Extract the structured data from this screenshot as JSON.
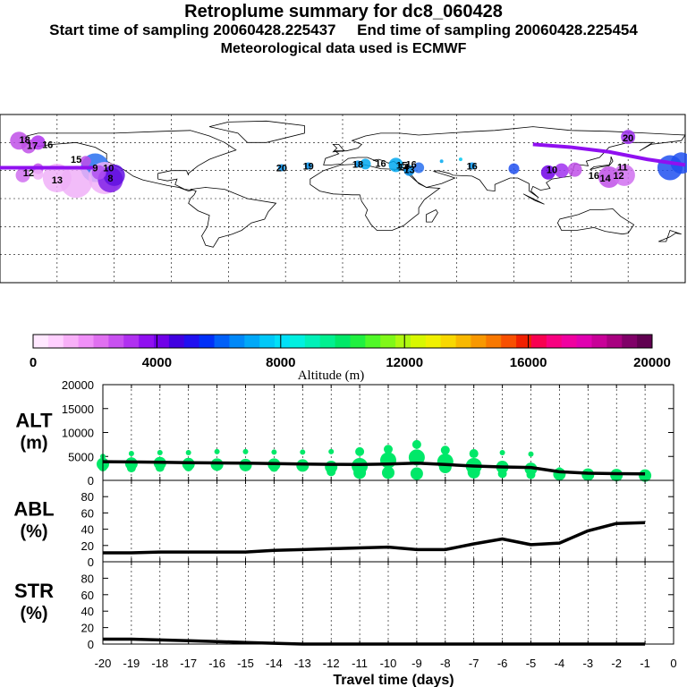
{
  "header": {
    "title": "Retroplume summary for dc8_060428",
    "start_label": "Start time of sampling 20060428.225437",
    "end_label": "End time of sampling 20060428.225454",
    "met_label": "Meteorological data used is ECMWF"
  },
  "colors": {
    "alt_line": "#000000",
    "particle": "#00e868",
    "scale": [
      "#ffe8ff",
      "#ffd0ff",
      "#f8b0f8",
      "#f090f8",
      "#e070f0",
      "#c850f0",
      "#b030f0",
      "#9010f0",
      "#7000e8",
      "#4000e0",
      "#2010f0",
      "#0030f8",
      "#0060f8",
      "#0088f8",
      "#00a8f8",
      "#00c8f8",
      "#00e0f8",
      "#00f0e0",
      "#00f0b8",
      "#00f090",
      "#00e868",
      "#20f040",
      "#50f828",
      "#80f818",
      "#b0f810",
      "#d8f800",
      "#f0f000",
      "#f8d800",
      "#f8b800",
      "#f89800",
      "#f87800",
      "#f85000",
      "#f02000",
      "#f80050",
      "#f80080",
      "#f000a0",
      "#e000b0",
      "#c80098",
      "#a80080",
      "#800068",
      "#600050"
    ]
  },
  "map": {
    "labels": [
      {
        "text": "9",
        "lon": -130,
        "lat": 33,
        "color": "#2870f0"
      },
      {
        "text": "8",
        "lon": -122,
        "lat": 22,
        "color": "#8020e8"
      },
      {
        "text": "10",
        "lon": -123,
        "lat": 33,
        "color": "#b050f0"
      },
      {
        "text": "13",
        "lon": -150,
        "lat": 20,
        "color": "#f0b0f8"
      },
      {
        "text": "12",
        "lon": -165,
        "lat": 28,
        "color": "#d070f0"
      },
      {
        "text": "17",
        "lon": -163,
        "lat": 57,
        "color": "#c050e8"
      },
      {
        "text": "16",
        "lon": -155,
        "lat": 58,
        "color": "#c050e8"
      },
      {
        "text": "18",
        "lon": -167,
        "lat": 63,
        "color": "#c050e8"
      },
      {
        "text": "15",
        "lon": -140,
        "lat": 42,
        "color": "#d070f0"
      },
      {
        "text": "20",
        "lon": -32,
        "lat": 33,
        "color": "#0090f0"
      },
      {
        "text": "19",
        "lon": -18,
        "lat": 35,
        "color": "#0090f0"
      },
      {
        "text": "18",
        "lon": 8,
        "lat": 37,
        "color": "#0090f0"
      },
      {
        "text": "16",
        "lon": 20,
        "lat": 38,
        "color": "#0090f0"
      },
      {
        "text": "15",
        "lon": 31,
        "lat": 36,
        "color": "#0090f0"
      },
      {
        "text": "14",
        "lon": 32,
        "lat": 34,
        "color": "#0090f0"
      },
      {
        "text": "13",
        "lon": 35,
        "lat": 31,
        "color": "#0090f0"
      },
      {
        "text": "16",
        "lon": 36,
        "lat": 37,
        "color": "#0090f0"
      },
      {
        "text": "16",
        "lon": 68,
        "lat": 35,
        "color": "#0090f0"
      },
      {
        "text": "11",
        "lon": 147,
        "lat": 34,
        "color": "#2050f0"
      },
      {
        "text": "16",
        "lon": 132,
        "lat": 25,
        "color": "#a030f0"
      },
      {
        "text": "14",
        "lon": 138,
        "lat": 22,
        "color": "#a030f0"
      },
      {
        "text": "12",
        "lon": 145,
        "lat": 25,
        "color": "#a030f0"
      },
      {
        "text": "20",
        "lon": 150,
        "lat": 65,
        "color": "#a030f0"
      },
      {
        "text": "10",
        "lon": 110,
        "lat": 31,
        "color": "#8020e8"
      }
    ]
  },
  "colorbar": {
    "label": "Altitude (m)",
    "ticks": [
      "0",
      "4000",
      "8000",
      "12000",
      "16000",
      "20000"
    ]
  },
  "chart_data": [
    {
      "type": "line",
      "panel": "ALT",
      "ylabel": "ALT\n(m)",
      "ylabel_line1": "ALT",
      "ylabel_line2": "(m)",
      "ylim": [
        0,
        20000
      ],
      "yticks": [
        "0",
        "5000",
        "10000",
        "15000",
        "20000"
      ],
      "x": [
        -20,
        -19,
        -18,
        -17,
        -16,
        -15,
        -14,
        -13,
        -12,
        -11,
        -10,
        -9,
        -8,
        -7,
        -6,
        -5,
        -4,
        -3,
        -2,
        -1
      ],
      "values": [
        3900,
        3850,
        3800,
        3700,
        3650,
        3600,
        3500,
        3400,
        3350,
        3300,
        3400,
        3600,
        3300,
        3000,
        2800,
        2700,
        1800,
        1500,
        1400,
        1350
      ],
      "particles": [
        {
          "x": -20,
          "alt": [
            5000,
            3400,
            2800
          ]
        },
        {
          "x": -19,
          "alt": [
            5600,
            3500,
            2600
          ]
        },
        {
          "x": -18,
          "alt": [
            5800,
            3600,
            2700
          ]
        },
        {
          "x": -17,
          "alt": [
            5800,
            3400,
            2800
          ]
        },
        {
          "x": -16,
          "alt": [
            6000,
            3300,
            2900
          ]
        },
        {
          "x": -15,
          "alt": [
            6000,
            3200,
            2900
          ]
        },
        {
          "x": -14,
          "alt": [
            5900,
            3300,
            2700
          ]
        },
        {
          "x": -13,
          "alt": [
            5900,
            3100,
            2800
          ]
        },
        {
          "x": -12,
          "alt": [
            6000,
            2800,
            1800
          ]
        },
        {
          "x": -11,
          "alt": [
            6000,
            3000,
            1600
          ]
        },
        {
          "x": -10,
          "alt": [
            6500,
            4200,
            1600
          ]
        },
        {
          "x": -9,
          "alt": [
            7500,
            4800,
            1400
          ]
        },
        {
          "x": -8,
          "alt": [
            6300,
            3900,
            2800
          ]
        },
        {
          "x": -7,
          "alt": [
            5600,
            3000,
            1700
          ]
        },
        {
          "x": -6,
          "alt": [
            5800,
            2800,
            1400
          ]
        },
        {
          "x": -5,
          "alt": [
            5500,
            2400,
            1200
          ]
        },
        {
          "x": -4,
          "alt": [
            2200,
            1300,
            1100
          ]
        },
        {
          "x": -3,
          "alt": [
            1500,
            1200,
            1000
          ]
        },
        {
          "x": -2,
          "alt": [
            1200,
            1100,
            900
          ]
        },
        {
          "x": -1,
          "alt": [
            1100,
            1000,
            800
          ]
        }
      ]
    },
    {
      "type": "line",
      "panel": "ABL",
      "ylabel_line1": "ABL",
      "ylabel_line2": "(%)",
      "ylim": [
        0,
        100
      ],
      "yticks": [
        "0",
        "20",
        "40",
        "60",
        "80"
      ],
      "x": [
        -20,
        -19,
        -18,
        -17,
        -16,
        -15,
        -14,
        -13,
        -12,
        -11,
        -10,
        -9,
        -8,
        -7,
        -6,
        -5,
        -4,
        -3,
        -2,
        -1
      ],
      "values": [
        11,
        11,
        12,
        12,
        12,
        12,
        14,
        15,
        16,
        17,
        18,
        15,
        15,
        22,
        28,
        21,
        23,
        38,
        47,
        48
      ]
    },
    {
      "type": "line",
      "panel": "STR",
      "ylabel_line1": "STR",
      "ylabel_line2": "(%)",
      "ylim": [
        0,
        100
      ],
      "yticks": [
        "0",
        "20",
        "40",
        "60",
        "80"
      ],
      "x": [
        -20,
        -19,
        -18,
        -17,
        -16,
        -15,
        -14,
        -13,
        -12,
        -11,
        -10,
        -9,
        -8,
        -7,
        -6,
        -5,
        -4,
        -3,
        -2,
        -1
      ],
      "values": [
        6,
        6,
        5,
        4,
        3,
        2,
        1,
        0,
        0,
        0,
        0,
        0,
        0,
        0,
        0,
        0,
        0,
        0,
        0,
        0
      ],
      "xlabel": "Travel time (days)",
      "xticks": [
        "-20",
        "-19",
        "-18",
        "-17",
        "-16",
        "-15",
        "-14",
        "-13",
        "-12",
        "-11",
        "-10",
        "-9",
        "-8",
        "-7",
        "-6",
        "-5",
        "-4",
        "-3",
        "-2",
        "-1",
        "0"
      ]
    }
  ]
}
